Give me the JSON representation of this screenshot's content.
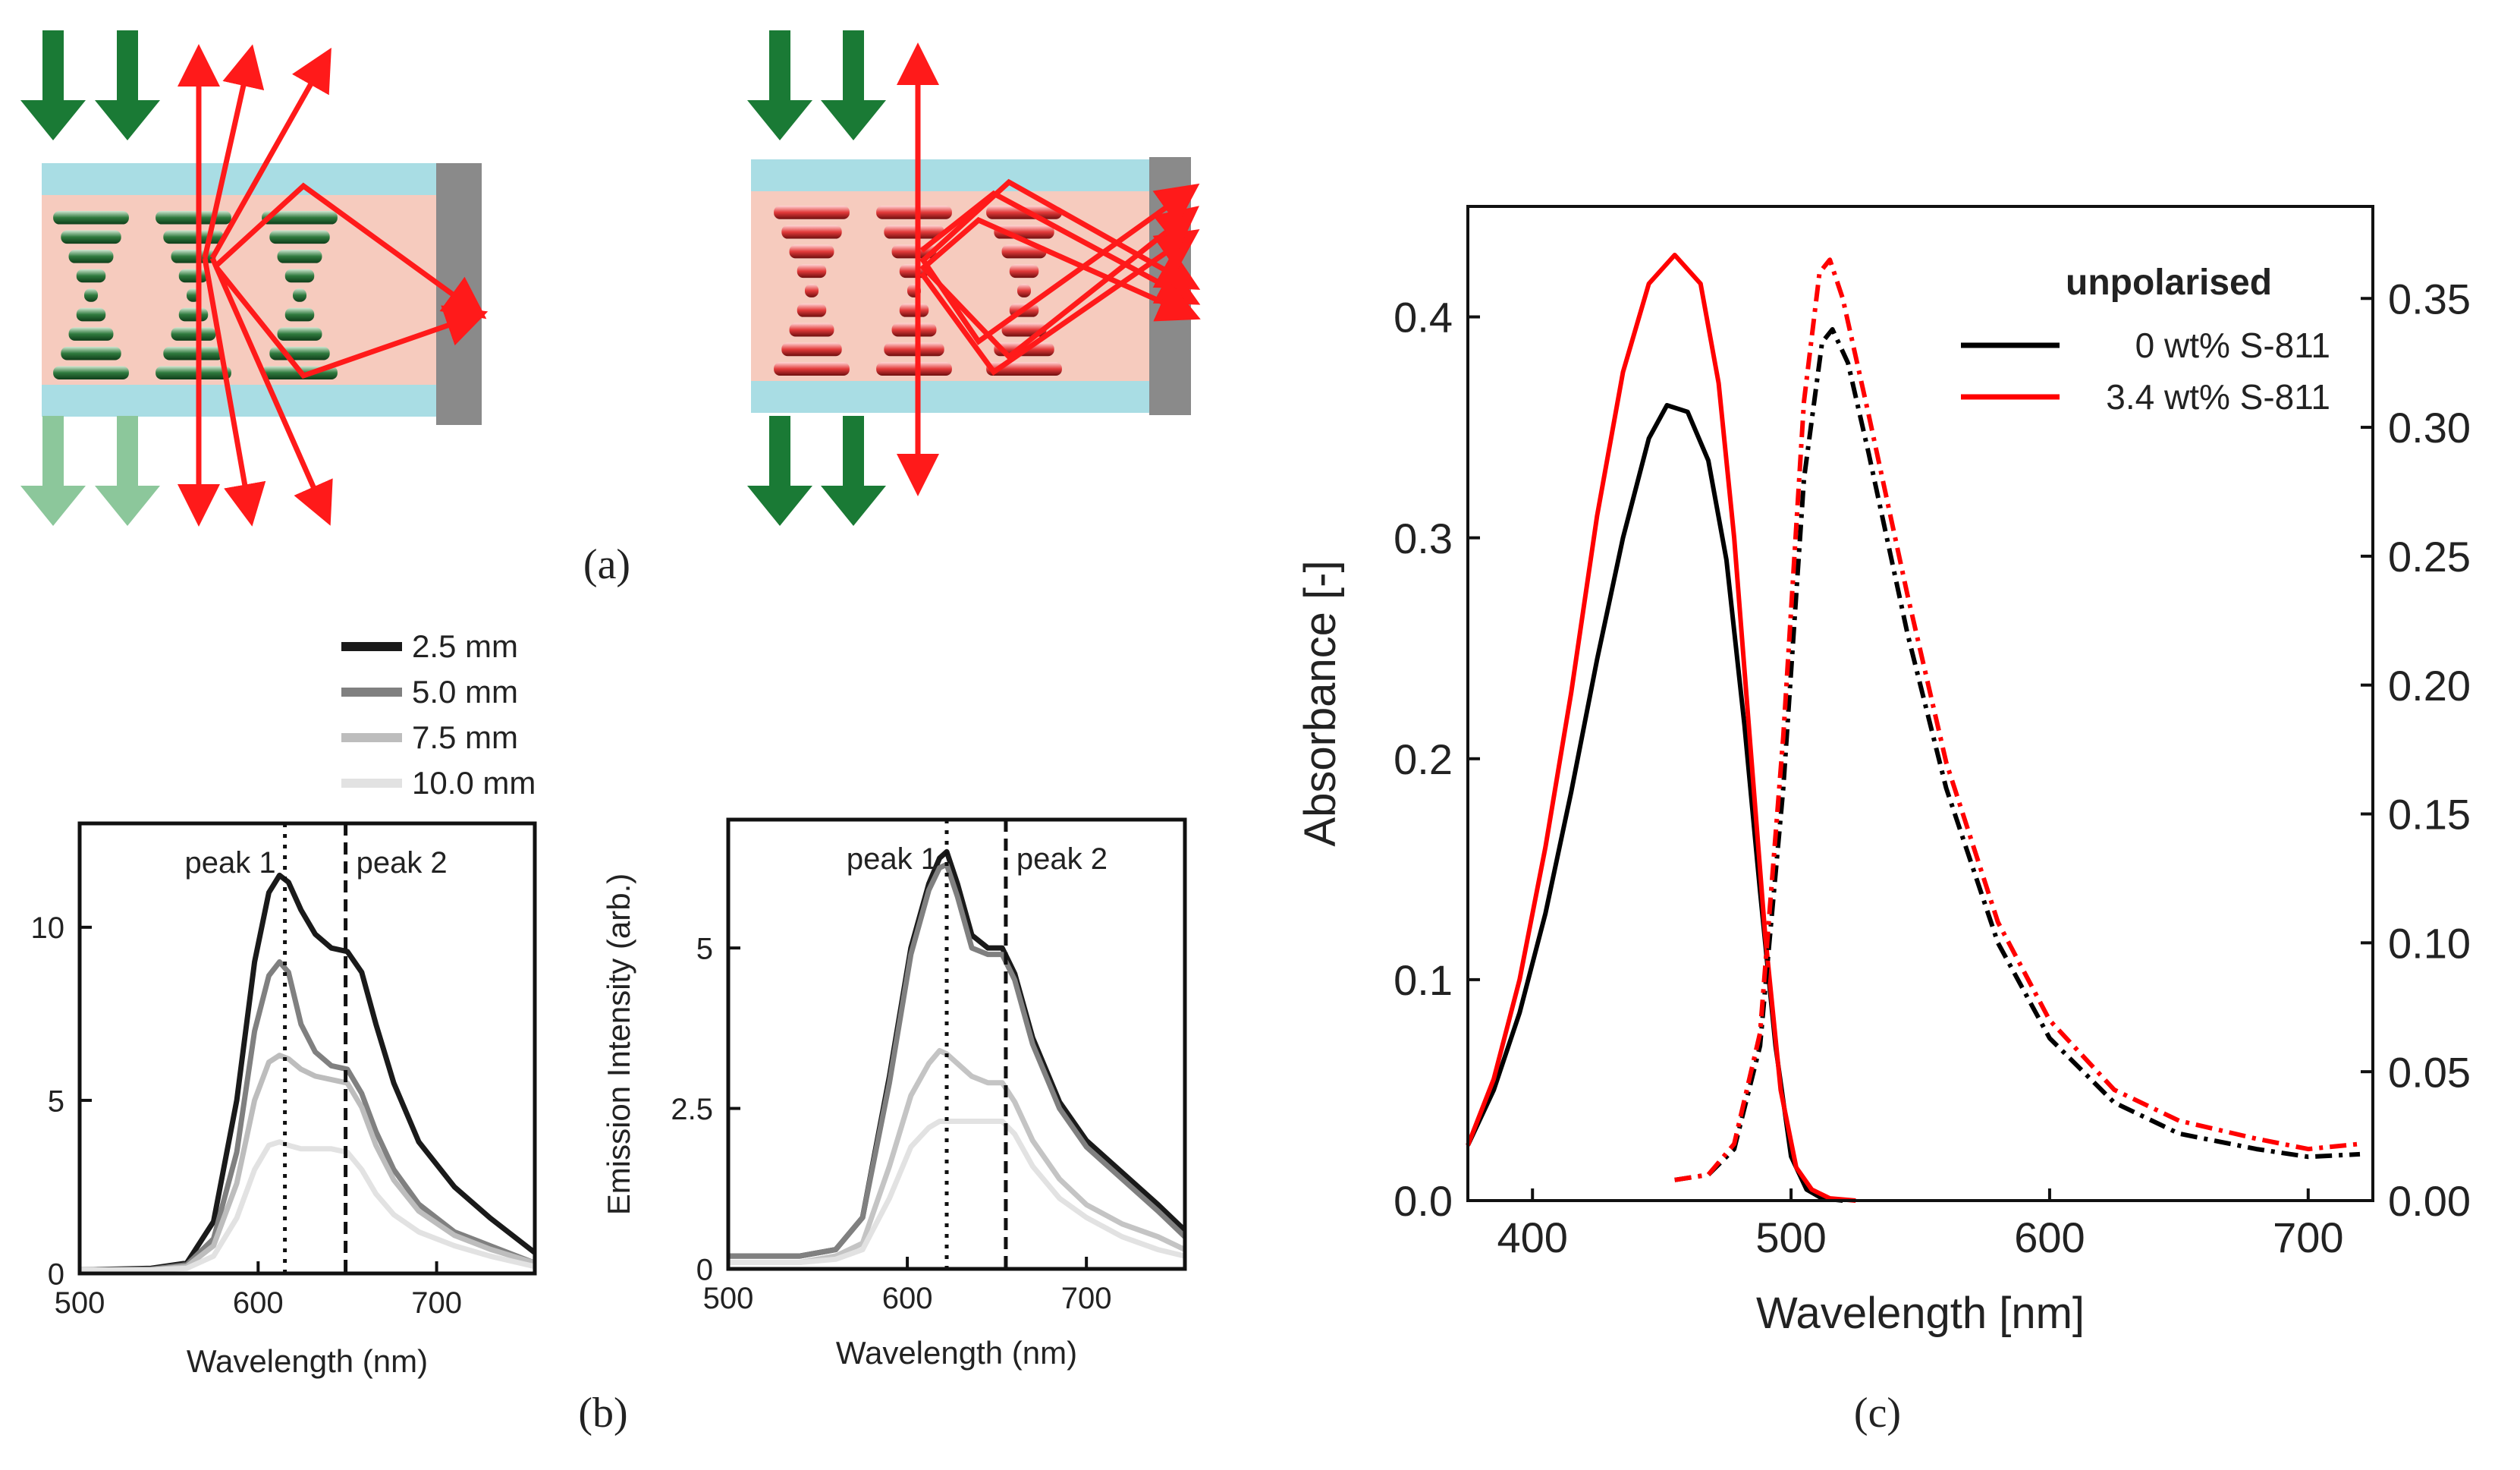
{
  "panel_labels": {
    "a": "(a)",
    "b": "(b)",
    "c": "(c)"
  },
  "colors": {
    "green": "#1a7a35",
    "light_green": "#8cc79b",
    "red": "#ff1a1a",
    "glass": "#a9dde4",
    "lc": "#f6cbbe",
    "mirror": "#8a8a8a"
  },
  "chart_data": [
    {
      "id": "b-left",
      "type": "line",
      "title": "",
      "xlabel": "Wavelength (nm)",
      "ylabel": "",
      "xlim": [
        500,
        755
      ],
      "ylim": [
        0,
        13
      ],
      "xticks": [
        500,
        600,
        700
      ],
      "yticks": [
        0,
        5,
        10
      ],
      "legend_title": "",
      "legend": [
        "2.5 mm",
        "5.0 mm",
        "7.5 mm",
        "10.0 mm"
      ],
      "annotations": [
        {
          "text": "peak 1",
          "x": 615,
          "style": "dotted"
        },
        {
          "text": "peak 2",
          "x": 649,
          "style": "dashed"
        }
      ],
      "x": [
        500,
        540,
        560,
        575,
        588,
        598,
        606,
        612,
        617,
        624,
        632,
        641,
        650,
        658,
        666,
        676,
        690,
        710,
        730,
        755
      ],
      "series": [
        {
          "name": "2.5 mm",
          "color": "#1a1a1a",
          "values": [
            0.1,
            0.15,
            0.3,
            1.5,
            5.0,
            9.0,
            11.0,
            11.5,
            11.3,
            10.5,
            9.8,
            9.4,
            9.3,
            8.7,
            7.2,
            5.5,
            3.8,
            2.5,
            1.6,
            0.6
          ]
        },
        {
          "name": "5.0 mm",
          "color": "#808080",
          "values": [
            0.1,
            0.12,
            0.25,
            1.0,
            3.5,
            7.0,
            8.6,
            9.0,
            8.7,
            7.2,
            6.4,
            6.0,
            5.9,
            5.2,
            4.1,
            3.0,
            2.0,
            1.2,
            0.8,
            0.3
          ]
        },
        {
          "name": "7.5 mm",
          "color": "#bdbdbd",
          "values": [
            0.1,
            0.1,
            0.2,
            0.8,
            2.6,
            5.0,
            6.1,
            6.3,
            6.2,
            5.9,
            5.7,
            5.6,
            5.5,
            4.8,
            3.7,
            2.7,
            1.8,
            1.1,
            0.7,
            0.3
          ]
        },
        {
          "name": "10.0 mm",
          "color": "#e2e2e2",
          "values": [
            0.1,
            0.1,
            0.15,
            0.5,
            1.6,
            3.0,
            3.7,
            3.8,
            3.7,
            3.6,
            3.6,
            3.6,
            3.5,
            3.0,
            2.3,
            1.7,
            1.2,
            0.8,
            0.5,
            0.2
          ]
        }
      ]
    },
    {
      "id": "b-right",
      "type": "line",
      "title": "",
      "xlabel": "Wavelength (nm)",
      "ylabel": "Emission Intensity (arb.)",
      "xlim": [
        500,
        755
      ],
      "ylim": [
        0,
        7
      ],
      "xticks": [
        500,
        600,
        700
      ],
      "yticks": [
        0,
        2.5,
        5
      ],
      "annotations": [
        {
          "text": "peak 1",
          "x": 622,
          "style": "dotted"
        },
        {
          "text": "peak 2",
          "x": 655,
          "style": "dashed"
        }
      ],
      "x": [
        500,
        540,
        560,
        575,
        590,
        602,
        612,
        618,
        622,
        628,
        636,
        645,
        653,
        660,
        670,
        685,
        700,
        720,
        740,
        755
      ],
      "series": [
        {
          "name": "2.5 mm",
          "color": "#1a1a1a",
          "values": [
            0.2,
            0.2,
            0.3,
            0.8,
            3.0,
            5.0,
            6.0,
            6.4,
            6.5,
            6.0,
            5.2,
            5.0,
            5.0,
            4.6,
            3.6,
            2.6,
            2.0,
            1.5,
            1.0,
            0.6
          ]
        },
        {
          "name": "5.0 mm",
          "color": "#808080",
          "values": [
            0.2,
            0.2,
            0.3,
            0.8,
            2.9,
            4.9,
            5.9,
            6.25,
            6.3,
            5.8,
            5.0,
            4.9,
            4.9,
            4.5,
            3.5,
            2.5,
            1.9,
            1.4,
            0.9,
            0.5
          ]
        },
        {
          "name": "7.5 mm",
          "color": "#c4c4c4",
          "values": [
            0.1,
            0.1,
            0.2,
            0.4,
            1.6,
            2.7,
            3.2,
            3.4,
            3.35,
            3.2,
            3.0,
            2.9,
            2.9,
            2.6,
            2.0,
            1.4,
            1.0,
            0.7,
            0.5,
            0.3
          ]
        },
        {
          "name": "10.0 mm",
          "color": "#e2e2e2",
          "values": [
            0.1,
            0.1,
            0.15,
            0.3,
            1.1,
            1.9,
            2.2,
            2.3,
            2.3,
            2.3,
            2.3,
            2.3,
            2.3,
            2.1,
            1.6,
            1.1,
            0.8,
            0.5,
            0.3,
            0.2
          ]
        }
      ]
    },
    {
      "id": "c",
      "type": "line",
      "title": "",
      "xlabel": "Wavelength [nm]",
      "ylabel": "Absorbance [-]",
      "xlim": [
        375,
        725
      ],
      "ylim": [
        0,
        0.45
      ],
      "y2lim": [
        0,
        0.3857
      ],
      "xticks": [
        400,
        500,
        600,
        700
      ],
      "yticks": [
        0.0,
        0.1,
        0.2,
        0.3,
        0.4
      ],
      "ytick_labels": [
        "0.0",
        "0.1",
        "0.2",
        "0.3",
        "0.4"
      ],
      "y2ticks": [
        0.0,
        0.05,
        0.1,
        0.15,
        0.2,
        0.25,
        0.3,
        0.35
      ],
      "y2tick_labels": [
        "0.00",
        "0.05",
        "0.10",
        "0.15",
        "0.20",
        "0.25",
        "0.30",
        "0.35"
      ],
      "legend_title": "unpolarised",
      "legend": [
        "0 wt% S-811",
        "3.4 wt% S-811"
      ],
      "series": [
        {
          "name": "0 wt% S-811",
          "axis": "left",
          "style": "solid",
          "color": "#000000",
          "x": [
            375,
            385,
            395,
            405,
            415,
            425,
            435,
            445,
            452,
            460,
            468,
            475,
            482,
            488,
            494,
            500,
            506,
            512,
            520
          ],
          "values": [
            0.025,
            0.05,
            0.085,
            0.13,
            0.185,
            0.245,
            0.3,
            0.345,
            0.36,
            0.357,
            0.335,
            0.29,
            0.215,
            0.14,
            0.07,
            0.02,
            0.005,
            0.001,
            0.0
          ]
        },
        {
          "name": "3.4 wt% S-811",
          "axis": "left",
          "style": "solid",
          "color": "#ff0000",
          "x": [
            375,
            385,
            395,
            405,
            415,
            425,
            435,
            445,
            455,
            465,
            472,
            478,
            484,
            490,
            496,
            502,
            508,
            515,
            525
          ],
          "values": [
            0.025,
            0.055,
            0.1,
            0.16,
            0.23,
            0.31,
            0.375,
            0.415,
            0.428,
            0.415,
            0.37,
            0.3,
            0.21,
            0.12,
            0.05,
            0.015,
            0.005,
            0.001,
            0.0
          ]
        },
        {
          "name": "0 wt% S-811",
          "axis": "right",
          "style": "dashdot",
          "color": "#000000",
          "x": [
            455,
            468,
            478,
            488,
            497,
            505,
            512,
            516,
            522,
            530,
            545,
            560,
            580,
            600,
            625,
            650,
            680,
            700,
            720
          ],
          "values": [
            0.008,
            0.01,
            0.02,
            0.06,
            0.16,
            0.28,
            0.333,
            0.338,
            0.325,
            0.29,
            0.22,
            0.16,
            0.1,
            0.063,
            0.038,
            0.026,
            0.02,
            0.017,
            0.018
          ]
        },
        {
          "name": "3.4 wt% S-811",
          "axis": "right",
          "style": "dashdot",
          "color": "#ff0000",
          "x": [
            455,
            468,
            478,
            488,
            497,
            505,
            511,
            515,
            520,
            530,
            545,
            560,
            580,
            600,
            625,
            650,
            680,
            700,
            720
          ],
          "values": [
            0.008,
            0.01,
            0.022,
            0.065,
            0.18,
            0.31,
            0.36,
            0.365,
            0.35,
            0.305,
            0.235,
            0.17,
            0.108,
            0.07,
            0.043,
            0.031,
            0.024,
            0.02,
            0.022
          ]
        }
      ]
    }
  ]
}
